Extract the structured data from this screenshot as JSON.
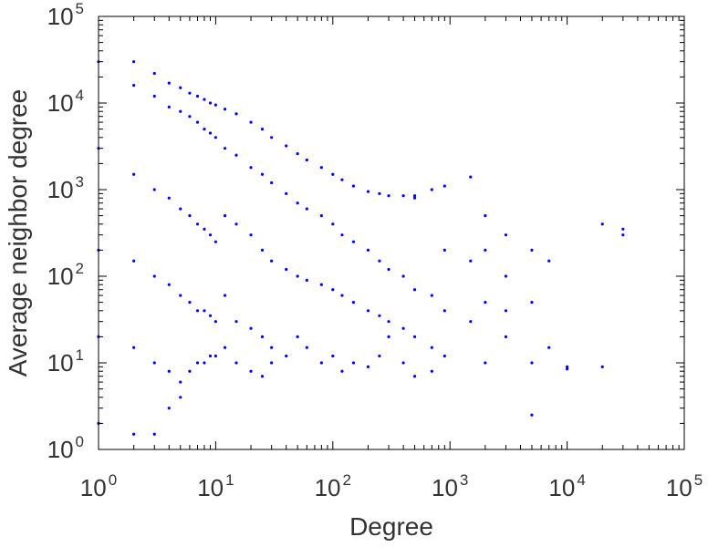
{
  "chart_data": {
    "type": "scatter",
    "title": "",
    "xlabel": "Degree",
    "ylabel": "Average neighbor degree",
    "xscale": "log",
    "yscale": "log",
    "xlim": [
      1,
      100000
    ],
    "ylim": [
      1,
      100000
    ],
    "x_tick_labels": [
      {
        "base": "10",
        "exp": "0"
      },
      {
        "base": "10",
        "exp": "1"
      },
      {
        "base": "10",
        "exp": "2"
      },
      {
        "base": "10",
        "exp": "3"
      },
      {
        "base": "10",
        "exp": "4"
      },
      {
        "base": "10",
        "exp": "5"
      }
    ],
    "y_tick_labels": [
      {
        "base": "10",
        "exp": "0"
      },
      {
        "base": "10",
        "exp": "1"
      },
      {
        "base": "10",
        "exp": "2"
      },
      {
        "base": "10",
        "exp": "3"
      },
      {
        "base": "10",
        "exp": "4"
      },
      {
        "base": "10",
        "exp": "5"
      }
    ],
    "grid": false,
    "legend": "none",
    "marker_color": "#0000ff",
    "series": [
      {
        "points": [
          [
            1,
            30000
          ],
          [
            1,
            3000
          ],
          [
            1,
            200
          ],
          [
            1,
            20
          ],
          [
            1,
            2
          ],
          [
            2,
            30000
          ],
          [
            2,
            16000
          ],
          [
            2,
            1500
          ],
          [
            2,
            150
          ],
          [
            2,
            15
          ],
          [
            2,
            1.5
          ],
          [
            3,
            22000
          ],
          [
            3,
            12000
          ],
          [
            3,
            1000
          ],
          [
            3,
            100
          ],
          [
            3,
            10
          ],
          [
            3,
            1.5
          ],
          [
            4,
            17000
          ],
          [
            4,
            9000
          ],
          [
            4,
            800
          ],
          [
            4,
            80
          ],
          [
            4,
            8
          ],
          [
            4,
            3
          ],
          [
            5,
            15000
          ],
          [
            5,
            8000
          ],
          [
            5,
            600
          ],
          [
            5,
            60
          ],
          [
            5,
            6
          ],
          [
            5,
            4
          ],
          [
            6,
            13000
          ],
          [
            6,
            7000
          ],
          [
            6,
            500
          ],
          [
            6,
            50
          ],
          [
            6,
            8
          ],
          [
            7,
            12000
          ],
          [
            7,
            6000
          ],
          [
            7,
            400
          ],
          [
            7,
            40
          ],
          [
            7,
            10
          ],
          [
            8,
            11000
          ],
          [
            8,
            5000
          ],
          [
            8,
            350
          ],
          [
            8,
            40
          ],
          [
            8,
            10
          ],
          [
            9,
            10000
          ],
          [
            9,
            4500
          ],
          [
            9,
            300
          ],
          [
            9,
            35
          ],
          [
            9,
            12
          ],
          [
            10,
            9500
          ],
          [
            10,
            4000
          ],
          [
            10,
            250
          ],
          [
            10,
            30
          ],
          [
            10,
            12
          ],
          [
            12,
            8500
          ],
          [
            12,
            3000
          ],
          [
            12,
            500
          ],
          [
            12,
            60
          ],
          [
            12,
            15
          ],
          [
            15,
            7500
          ],
          [
            15,
            2500
          ],
          [
            15,
            400
          ],
          [
            15,
            30
          ],
          [
            15,
            10
          ],
          [
            20,
            6000
          ],
          [
            20,
            1800
          ],
          [
            20,
            300
          ],
          [
            20,
            25
          ],
          [
            20,
            8
          ],
          [
            25,
            5000
          ],
          [
            25,
            1500
          ],
          [
            25,
            200
          ],
          [
            25,
            20
          ],
          [
            25,
            7
          ],
          [
            30,
            4000
          ],
          [
            30,
            1200
          ],
          [
            30,
            150
          ],
          [
            30,
            15
          ],
          [
            30,
            10
          ],
          [
            40,
            3200
          ],
          [
            40,
            900
          ],
          [
            40,
            120
          ],
          [
            40,
            12
          ],
          [
            50,
            2600
          ],
          [
            50,
            700
          ],
          [
            50,
            100
          ],
          [
            50,
            20
          ],
          [
            60,
            2200
          ],
          [
            60,
            600
          ],
          [
            60,
            90
          ],
          [
            60,
            15
          ],
          [
            80,
            1800
          ],
          [
            80,
            500
          ],
          [
            80,
            80
          ],
          [
            80,
            10
          ],
          [
            100,
            1500
          ],
          [
            100,
            400
          ],
          [
            100,
            70
          ],
          [
            100,
            12
          ],
          [
            120,
            1300
          ],
          [
            120,
            300
          ],
          [
            120,
            60
          ],
          [
            120,
            8
          ],
          [
            150,
            1100
          ],
          [
            150,
            250
          ],
          [
            150,
            50
          ],
          [
            150,
            10
          ],
          [
            200,
            950
          ],
          [
            200,
            200
          ],
          [
            200,
            40
          ],
          [
            200,
            9
          ],
          [
            250,
            900
          ],
          [
            250,
            150
          ],
          [
            250,
            35
          ],
          [
            250,
            12
          ],
          [
            300,
            850
          ],
          [
            300,
            120
          ],
          [
            300,
            30
          ],
          [
            300,
            20
          ],
          [
            400,
            850
          ],
          [
            400,
            100
          ],
          [
            400,
            25
          ],
          [
            400,
            10
          ],
          [
            500,
            850
          ],
          [
            500,
            800
          ],
          [
            500,
            70
          ],
          [
            500,
            20
          ],
          [
            500,
            7
          ],
          [
            700,
            1000
          ],
          [
            700,
            60
          ],
          [
            700,
            15
          ],
          [
            700,
            8
          ],
          [
            900,
            1100
          ],
          [
            900,
            200
          ],
          [
            900,
            40
          ],
          [
            900,
            12
          ],
          [
            1500,
            1400
          ],
          [
            1500,
            150
          ],
          [
            1500,
            30
          ],
          [
            2000,
            500
          ],
          [
            2000,
            200
          ],
          [
            2000,
            50
          ],
          [
            2000,
            10
          ],
          [
            3000,
            300
          ],
          [
            3000,
            100
          ],
          [
            3000,
            40
          ],
          [
            3000,
            20
          ],
          [
            5000,
            200
          ],
          [
            5000,
            50
          ],
          [
            5000,
            10
          ],
          [
            5000,
            2.5
          ],
          [
            7000,
            150
          ],
          [
            7000,
            15
          ],
          [
            10000,
            9
          ],
          [
            10000,
            8.5
          ],
          [
            20000,
            400
          ],
          [
            20000,
            9
          ],
          [
            30000,
            300
          ],
          [
            30000,
            350
          ]
        ]
      }
    ]
  }
}
